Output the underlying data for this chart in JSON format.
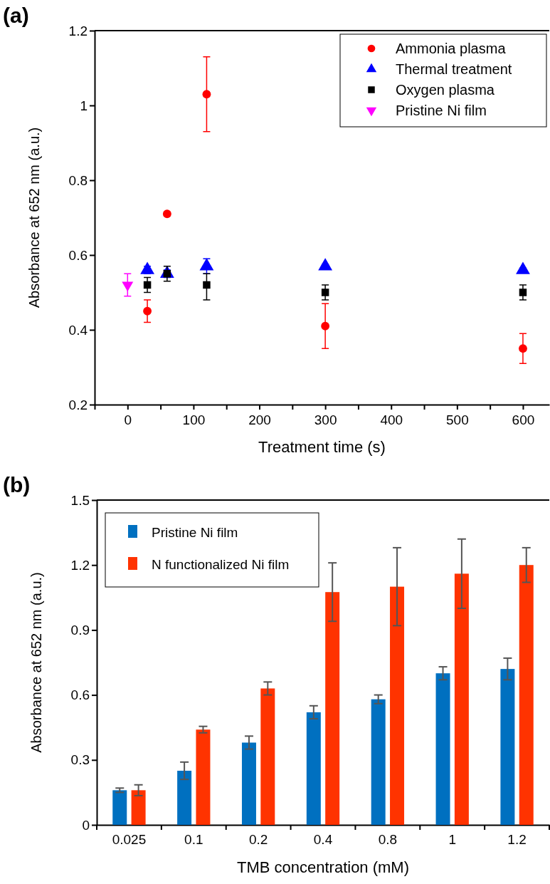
{
  "chart_data": [
    {
      "type": "scatter",
      "annotations": [
        "(a)"
      ],
      "xlabel": "Treatment time (s)",
      "ylabel": "Absorbance at 652 nm (a.u.)",
      "xlim": [
        -50,
        640
      ],
      "ylim": [
        0.2,
        1.2
      ],
      "xticks": [
        {
          "value": -50,
          "label": null
        },
        0,
        {
          "value": 50,
          "label": null
        },
        100,
        {
          "value": 150,
          "label": null
        },
        200,
        {
          "value": 250,
          "label": null
        },
        300,
        {
          "value": 350,
          "label": null
        },
        400,
        {
          "value": 450,
          "label": null
        },
        500,
        {
          "value": 550,
          "label": null
        },
        600
      ],
      "yticks": [
        0.2,
        0.4,
        0.6,
        0.8,
        1.0,
        1.2
      ],
      "legend": "top right",
      "series": [
        {
          "name": "Ammonia plasma",
          "color": "#ff0000",
          "marker": "circle",
          "x": [
            30,
            60,
            120,
            300,
            600
          ],
          "values": [
            0.45,
            0.71,
            1.03,
            0.41,
            0.35
          ],
          "errors": [
            0.03,
            0.005,
            0.1,
            0.06,
            0.04
          ]
        },
        {
          "name": "Thermal treatment",
          "color": "#0000ff",
          "marker": "triangle",
          "x": [
            30,
            60,
            120,
            300,
            600
          ],
          "values": [
            0.56,
            0.55,
            0.57,
            0.57,
            0.56
          ],
          "errors": [
            0.01,
            0.01,
            0.02,
            0.005,
            0.005
          ]
        },
        {
          "name": "Oxygen plasma",
          "color": "#000000",
          "marker": "square",
          "x": [
            30,
            60,
            120,
            300,
            600
          ],
          "values": [
            0.52,
            0.55,
            0.52,
            0.5,
            0.5
          ],
          "errors": [
            0.02,
            0.02,
            [
              0.48,
              0.55
            ],
            0.02,
            0.02
          ]
        },
        {
          "name": "Pristine Ni film",
          "color": "#ff00ff",
          "marker": "triangle-down",
          "x": [
            0
          ],
          "values": [
            0.52
          ],
          "errors": [
            0.03
          ]
        }
      ]
    },
    {
      "type": "bar",
      "annotations": [
        "(b)"
      ],
      "xlabel": "TMB concentration (mM)",
      "ylabel": "Absorbance at 652 nm (a.u.)",
      "categories": [
        "0.025",
        "0.1",
        "0.2",
        "0.4",
        "0.8",
        "1",
        "1.2"
      ],
      "ylim": [
        0,
        1.5
      ],
      "yticks": [
        0,
        0.3,
        0.6,
        0.9,
        1.2,
        1.5
      ],
      "legend": "top left",
      "series": [
        {
          "name": "Pristine Ni film",
          "color": "#0070c0",
          "values": [
            0.16,
            0.25,
            0.38,
            0.52,
            0.58,
            0.7,
            0.72
          ],
          "errors": [
            0.01,
            0.04,
            0.03,
            0.03,
            0.02,
            0.03,
            0.05
          ]
        },
        {
          "name": "N functionalized Ni film",
          "color": "#ff3300",
          "values": [
            0.16,
            0.44,
            0.63,
            1.075,
            1.1,
            1.16,
            1.2
          ],
          "errors": [
            0.025,
            0.015,
            0.03,
            0.135,
            0.18,
            0.16,
            0.08
          ]
        }
      ]
    }
  ]
}
